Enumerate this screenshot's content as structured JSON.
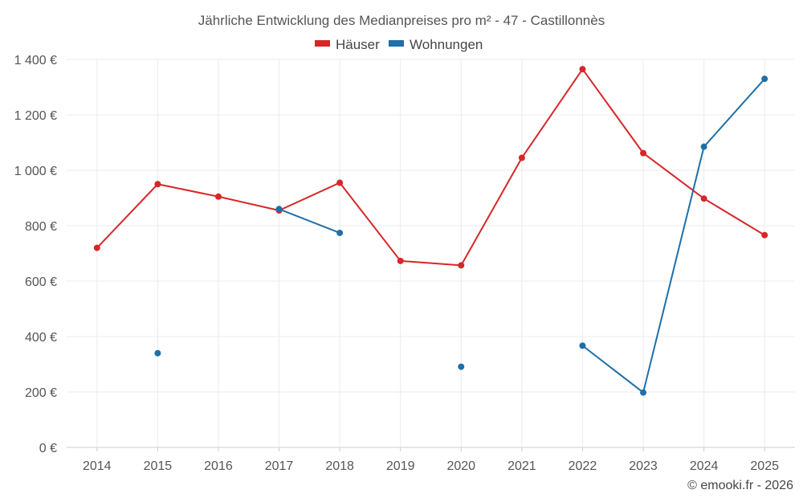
{
  "chart_data": {
    "type": "line",
    "title": "Jährliche Entwicklung des Medianpreises pro m² - 47 - Castillonnès",
    "categories": [
      "2014",
      "2015",
      "2016",
      "2017",
      "2018",
      "2019",
      "2020",
      "2021",
      "2022",
      "2023",
      "2024",
      "2025"
    ],
    "series": [
      {
        "name": "Häuser",
        "color": "#d62728",
        "values": [
          720,
          950,
          905,
          855,
          955,
          673,
          657,
          1045,
          1365,
          1062,
          898,
          766
        ]
      },
      {
        "name": "Wohnungen",
        "color": "#1f6fa8",
        "values": [
          null,
          340,
          null,
          860,
          774,
          null,
          291,
          null,
          367,
          198,
          1085,
          1330
        ]
      }
    ],
    "ylim": [
      0,
      1400
    ],
    "yticks": [
      0,
      200,
      400,
      600,
      800,
      1000,
      1200,
      1400
    ],
    "ytick_labels": [
      "0 €",
      "200 €",
      "400 €",
      "600 €",
      "800 €",
      "1 000 €",
      "1 200 €",
      "1 400 €"
    ],
    "xlabel": "",
    "ylabel": "",
    "grid": true,
    "legend_position": "top-center"
  },
  "credit": "© emooki.fr - 2026"
}
